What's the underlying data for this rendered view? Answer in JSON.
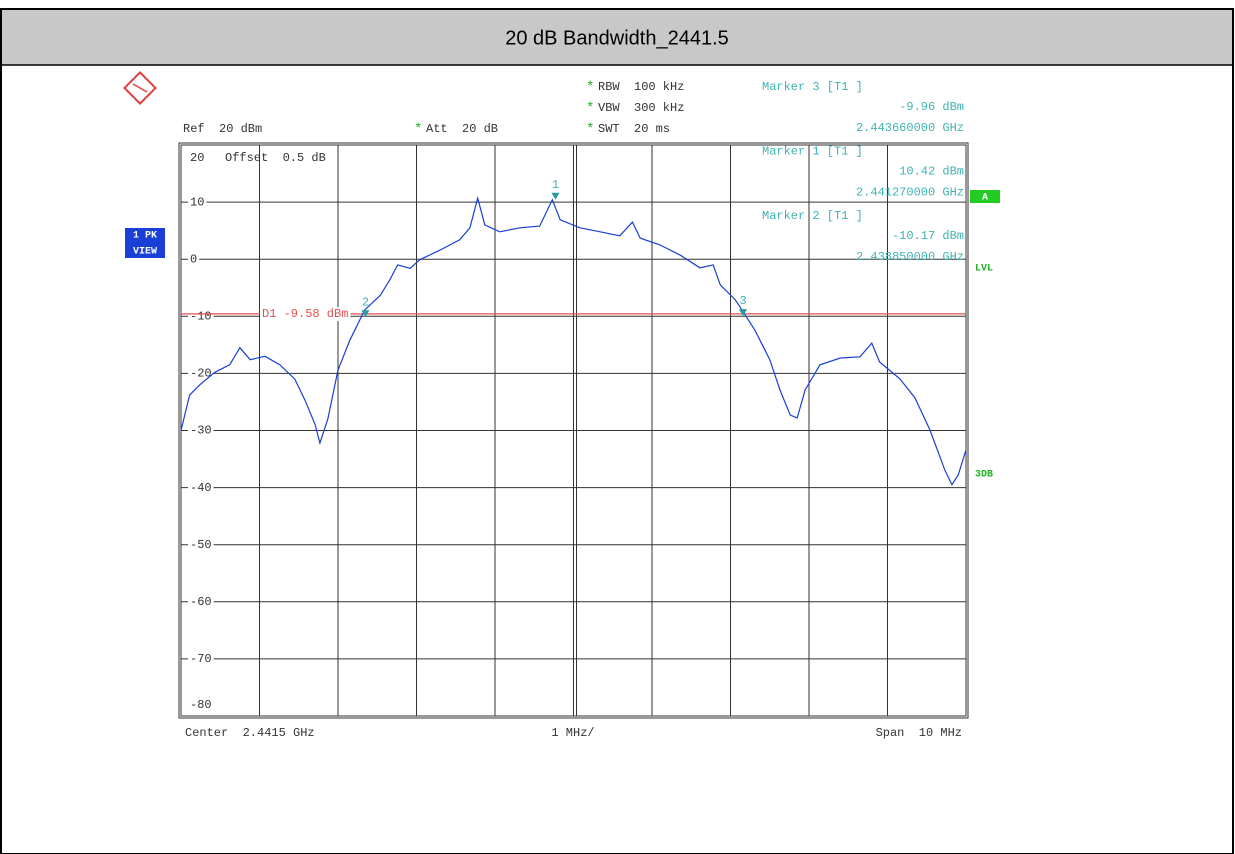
{
  "chart_data": {
    "type": "line",
    "title": "20 dB Bandwidth_2441.5",
    "header": {
      "ref": "Ref  20 dBm",
      "att": {
        "flag": "*",
        "text": "Att  20 dB"
      },
      "offset": "Offset  0.5 dB",
      "settings": [
        {
          "flag": "*",
          "text": "RBW  100 kHz"
        },
        {
          "flag": "*",
          "text": "VBW  300 kHz"
        },
        {
          "flag": "*",
          "text": "SWT  20 ms"
        }
      ]
    },
    "footer": {
      "center": "Center  2.4415 GHz",
      "division": "1 MHz/",
      "span": "Span  10 MHz"
    },
    "side_labels": {
      "trace": "1 PK",
      "mode": "VIEW",
      "a": "A",
      "lvl": "LVL",
      "db": "3DB"
    },
    "color": "#1a3fd6",
    "xlim": [
      2.4365,
      2.4465
    ],
    "ylim": [
      -80,
      20
    ],
    "yticks": [
      20,
      10,
      0,
      -10,
      -20,
      -30,
      -40,
      -50,
      -60,
      -70,
      -80
    ],
    "grid": true,
    "x": [
      2.4365,
      2.43661,
      2.43674,
      2.43693,
      2.43712,
      2.43725,
      2.43738,
      2.43757,
      2.43776,
      2.43795,
      2.43808,
      2.43821,
      2.43827,
      2.43837,
      2.4385,
      2.43865,
      2.43884,
      2.43904,
      2.43916,
      2.43926,
      2.43942,
      2.43954,
      2.4398,
      2.44005,
      2.44018,
      2.44028,
      2.44037,
      2.44056,
      2.44082,
      2.44107,
      2.44123,
      2.44133,
      2.44158,
      2.44184,
      2.44209,
      2.44225,
      2.44235,
      2.4426,
      2.44286,
      2.44311,
      2.44328,
      2.44337,
      2.44356,
      2.44366,
      2.44381,
      2.444,
      2.44413,
      2.44426,
      2.44435,
      2.44445,
      2.44464,
      2.4449,
      2.44515,
      2.4453,
      2.4454,
      2.44566,
      2.44585,
      2.44604,
      2.44623,
      2.44632,
      2.4464,
      2.4465
    ],
    "values": [
      -30,
      -23.8,
      -22,
      -19.8,
      -18.5,
      -15.5,
      -17.6,
      -17,
      -18.5,
      -21,
      -24.7,
      -29,
      -32.2,
      -28,
      -19.4,
      -14.2,
      -8.9,
      -6.3,
      -3.6,
      -1,
      -1.6,
      -0.1,
      1.6,
      3.4,
      5.5,
      10.7,
      6,
      4.8,
      5.5,
      5.8,
      10.4,
      6.9,
      5.5,
      4.8,
      4.1,
      6.5,
      3.7,
      2.5,
      0.7,
      -1.5,
      -1,
      -4.5,
      -7.1,
      -9.2,
      -12.4,
      -17.6,
      -22.9,
      -27.3,
      -27.8,
      -22.9,
      -18.5,
      -17.3,
      -17.1,
      -14.7,
      -18,
      -21,
      -24.3,
      -29.9,
      -36.9,
      -39.5,
      -37.8,
      -33.4
    ],
    "display_line": {
      "label": "D1 -9.58 dBm",
      "value": -9.58
    },
    "markers": [
      {
        "label": "3",
        "name": "Marker 3 [T1 ]",
        "x": 2.44366,
        "value": -9.96,
        "value_label": "-9.96 dBm",
        "x_label": "2.443660000 GHz"
      },
      {
        "label": "1",
        "name": "Marker 1 [T1 ]",
        "x": 2.44127,
        "value": 10.42,
        "value_label": "10.42 dBm",
        "x_label": "2.441270000 GHz"
      },
      {
        "label": "2",
        "name": "Marker 2 [T1 ]",
        "x": 2.43885,
        "value": -10.17,
        "value_label": "-10.17 dBm",
        "x_label": "2.438850000 GHz"
      }
    ]
  }
}
